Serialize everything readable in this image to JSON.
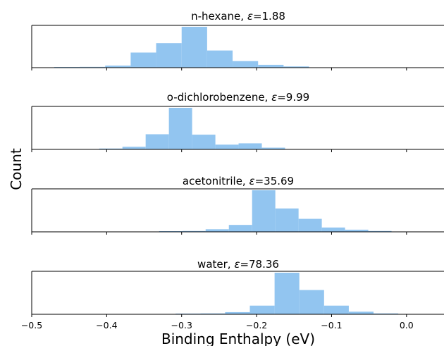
{
  "chart_data": {
    "type": "histogram",
    "xlabel": "Binding Enthalpy (eV)",
    "ylabel": "Count",
    "xlim": [
      -0.5,
      0.05
    ],
    "xticks": [
      -0.5,
      -0.4,
      -0.3,
      -0.2,
      -0.1,
      0.0
    ],
    "xtick_labels": [
      "−0.5",
      "−0.4",
      "−0.3",
      "−0.2",
      "−0.1",
      "0.0"
    ],
    "bar_color": "#92c5f0",
    "panels": [
      {
        "title_name": "n-hexane, ",
        "title_symbol": "ε",
        "title_value": "=1.88",
        "bin_width": 0.034,
        "bins": [
          {
            "x0": -0.47,
            "v": 0.01
          },
          {
            "x0": -0.436,
            "v": 0.02
          },
          {
            "x0": -0.402,
            "v": 0.05
          },
          {
            "x0": -0.368,
            "v": 0.37
          },
          {
            "x0": -0.334,
            "v": 0.6
          },
          {
            "x0": -0.3,
            "v": 1.0
          },
          {
            "x0": -0.266,
            "v": 0.42
          },
          {
            "x0": -0.232,
            "v": 0.16
          },
          {
            "x0": -0.198,
            "v": 0.07
          },
          {
            "x0": -0.164,
            "v": 0.03
          }
        ]
      },
      {
        "title_name": "o-dichlorobenzene, ",
        "title_symbol": "ε",
        "title_value": "=9.99",
        "bin_width": 0.031,
        "bins": [
          {
            "x0": -0.41,
            "v": 0.02
          },
          {
            "x0": -0.379,
            "v": 0.06
          },
          {
            "x0": -0.348,
            "v": 0.35
          },
          {
            "x0": -0.317,
            "v": 0.96
          },
          {
            "x0": -0.286,
            "v": 0.34
          },
          {
            "x0": -0.255,
            "v": 0.11
          },
          {
            "x0": -0.224,
            "v": 0.14
          },
          {
            "x0": -0.193,
            "v": 0.04
          }
        ]
      },
      {
        "title_name": "acetonitrile, ",
        "title_symbol": "ε",
        "title_value": "=35.69",
        "bin_width": 0.031,
        "bins": [
          {
            "x0": -0.33,
            "v": 0.01
          },
          {
            "x0": -0.299,
            "v": 0.02
          },
          {
            "x0": -0.268,
            "v": 0.06
          },
          {
            "x0": -0.237,
            "v": 0.16
          },
          {
            "x0": -0.206,
            "v": 0.96
          },
          {
            "x0": -0.175,
            "v": 0.54
          },
          {
            "x0": -0.144,
            "v": 0.3
          },
          {
            "x0": -0.113,
            "v": 0.1
          },
          {
            "x0": -0.082,
            "v": 0.05
          },
          {
            "x0": -0.051,
            "v": 0.02
          }
        ]
      },
      {
        "title_name": "water, ",
        "title_symbol": "ε",
        "title_value": "=78.36",
        "bin_width": 0.033,
        "bins": [
          {
            "x0": -0.308,
            "v": 0.01
          },
          {
            "x0": -0.275,
            "v": 0.02
          },
          {
            "x0": -0.242,
            "v": 0.05
          },
          {
            "x0": -0.209,
            "v": 0.2
          },
          {
            "x0": -0.176,
            "v": 0.96
          },
          {
            "x0": -0.143,
            "v": 0.56
          },
          {
            "x0": -0.11,
            "v": 0.2
          },
          {
            "x0": -0.077,
            "v": 0.06
          },
          {
            "x0": -0.044,
            "v": 0.02
          }
        ]
      }
    ]
  }
}
